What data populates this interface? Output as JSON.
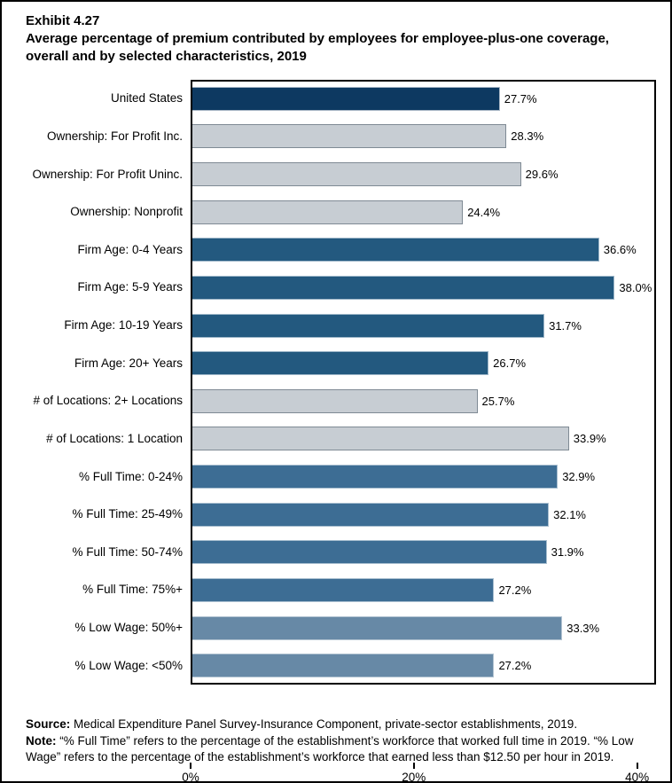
{
  "title": {
    "exhibit": "Exhibit 4.27",
    "text": "Average percentage of premium contributed by employees for employee-plus-one coverage, overall and by selected characteristics, 2019"
  },
  "chart_data": {
    "type": "bar",
    "orientation": "horizontal",
    "title": "Average percentage of premium contributed by employees for employee-plus-one coverage, overall and by selected characteristics, 2019",
    "categories": [
      "United States",
      "Ownership: For Profit Inc.",
      "Ownership: For Profit Uninc.",
      "Ownership: Nonprofit",
      "Firm Age: 0-4 Years",
      "Firm Age: 5-9 Years",
      "Firm Age: 10-19 Years",
      "Firm Age: 20+ Years",
      "# of Locations: 2+ Locations",
      "# of Locations: 1 Location",
      "% Full Time: 0-24%",
      "% Full Time: 25-49%",
      "% Full Time: 50-74%",
      "% Full Time: 75%+",
      "% Low Wage: 50%+",
      "% Low Wage: <50%"
    ],
    "values": [
      27.7,
      28.3,
      29.6,
      24.4,
      36.6,
      38.0,
      31.7,
      26.7,
      25.7,
      33.9,
      32.9,
      32.1,
      31.9,
      27.2,
      33.3,
      27.2
    ],
    "value_labels": [
      "27.7%",
      "28.3%",
      "29.6%",
      "24.4%",
      "36.6%",
      "38.0%",
      "31.7%",
      "26.7%",
      "25.7%",
      "33.9%",
      "32.9%",
      "32.1%",
      "31.9%",
      "27.2%",
      "33.3%",
      "27.2%"
    ],
    "bar_styles": [
      "navy",
      "gray",
      "gray",
      "gray",
      "midblue",
      "midblue",
      "midblue",
      "midblue",
      "gray",
      "gray",
      "steel",
      "steel",
      "steel",
      "steel",
      "lightsteel",
      "lightsteel"
    ],
    "x_ticks": [
      {
        "value": 0,
        "label": "0%"
      },
      {
        "value": 20,
        "label": "20%"
      },
      {
        "value": 40,
        "label": "40%"
      }
    ],
    "xlim": [
      0,
      41.7
    ],
    "xlabel": "",
    "ylabel": "",
    "grid": false,
    "legend": false
  },
  "colors": {
    "navy": {
      "fill": "#0D3961",
      "border": "#A9B7C6"
    },
    "gray": {
      "fill": "#C7CDD3",
      "border": "#7F8A94"
    },
    "midblue": {
      "fill": "#23597F",
      "border": "#9DB6C8"
    },
    "steel": {
      "fill": "#3D6D94",
      "border": "#A9BFD0"
    },
    "lightsteel": {
      "fill": "#6789A6",
      "border": "#B3C4D2"
    }
  },
  "footer": {
    "source_label": "Source:",
    "source_text": " Medical Expenditure Panel Survey-Insurance Component, private-sector establishments, 2019.",
    "note_label": "Note:",
    "note_text": " “% Full Time” refers to the percentage of the establishment’s workforce that worked full time in 2019. “% Low Wage” refers to the percentage of the establishment’s workforce that earned less than $12.50 per hour in 2019."
  }
}
